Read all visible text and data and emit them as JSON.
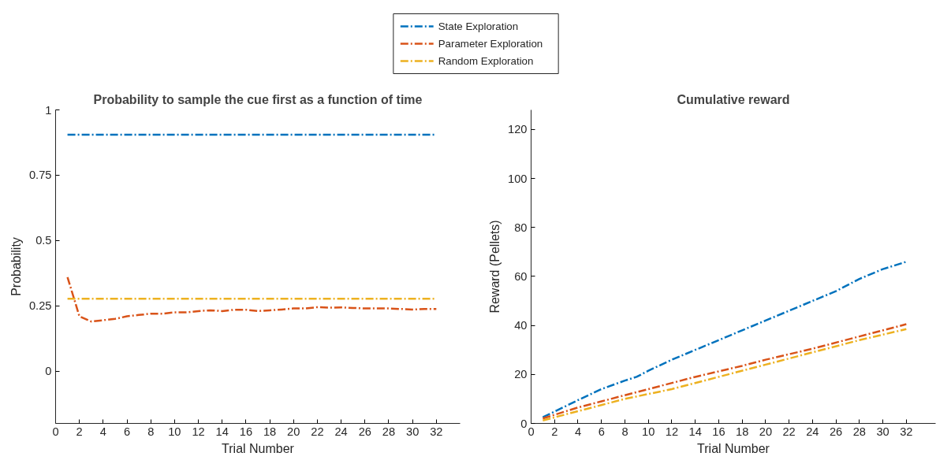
{
  "chart_data": [
    {
      "type": "line",
      "title": "Probability to sample the cue first as a function of time",
      "xlabel": "Trial Number",
      "ylabel": "Probability",
      "xlim": [
        0,
        34
      ],
      "xticks": [
        0,
        2,
        4,
        6,
        8,
        10,
        12,
        14,
        16,
        18,
        20,
        22,
        24,
        26,
        28,
        30,
        32
      ],
      "ylim": [
        -0.2,
        1
      ],
      "yticks": [
        0,
        0.25,
        0.5,
        0.75,
        1
      ],
      "grid": false,
      "legend": "top",
      "line_style": "dashed",
      "series": [
        {
          "name": "State Exploration",
          "color": "#0072bd",
          "x": [
            1,
            32
          ],
          "values": [
            0.905,
            0.905
          ]
        },
        {
          "name": "Parameter Exploration",
          "color": "#d95319",
          "x": [
            1,
            2,
            3,
            4,
            5,
            6,
            7,
            8,
            9,
            10,
            11,
            12,
            13,
            14,
            15,
            16,
            17,
            18,
            19,
            20,
            21,
            22,
            23,
            24,
            25,
            26,
            27,
            28,
            29,
            30,
            31,
            32
          ],
          "values": [
            0.36,
            0.21,
            0.19,
            0.195,
            0.2,
            0.21,
            0.215,
            0.22,
            0.22,
            0.225,
            0.225,
            0.23,
            0.233,
            0.23,
            0.235,
            0.235,
            0.23,
            0.233,
            0.236,
            0.24,
            0.24,
            0.245,
            0.243,
            0.244,
            0.242,
            0.24,
            0.24,
            0.24,
            0.238,
            0.236,
            0.238,
            0.238
          ]
        },
        {
          "name": "Random Exploration",
          "color": "#edb120",
          "x": [
            1,
            32
          ],
          "values": [
            0.277,
            0.277
          ]
        }
      ]
    },
    {
      "type": "line",
      "title": "Cumulative reward",
      "xlabel": "Trial Number",
      "ylabel": "Reward (Pellets)",
      "xlim": [
        0,
        34.5
      ],
      "xticks": [
        0,
        2,
        4,
        6,
        8,
        10,
        12,
        14,
        16,
        18,
        20,
        22,
        24,
        26,
        28,
        30,
        32
      ],
      "ylim": [
        0,
        128
      ],
      "yticks": [
        0,
        20,
        40,
        60,
        80,
        100,
        120
      ],
      "grid": false,
      "line_style": "dashed",
      "series": [
        {
          "color": "#0072bd",
          "x": [
            1,
            4,
            6,
            8,
            9,
            10,
            12,
            14,
            16,
            18,
            20,
            22,
            24,
            26,
            28,
            30,
            32
          ],
          "values": [
            2.5,
            9.5,
            14,
            17.5,
            19,
            21.5,
            26,
            30,
            34,
            38,
            42,
            46,
            50,
            54,
            59,
            63,
            66
          ]
        },
        {
          "color": "#d95319",
          "x": [
            1,
            4,
            6,
            8,
            10,
            14,
            18,
            20,
            24,
            28,
            32
          ],
          "values": [
            2,
            6.5,
            9,
            11.5,
            14,
            19,
            23.5,
            26,
            30.5,
            35.5,
            40.5
          ]
        },
        {
          "color": "#edb120",
          "x": [
            1,
            4,
            8,
            12,
            16,
            20,
            24,
            28,
            32
          ],
          "values": [
            1.2,
            5,
            10,
            14,
            19,
            24,
            29,
            34,
            38.5
          ]
        }
      ]
    }
  ]
}
